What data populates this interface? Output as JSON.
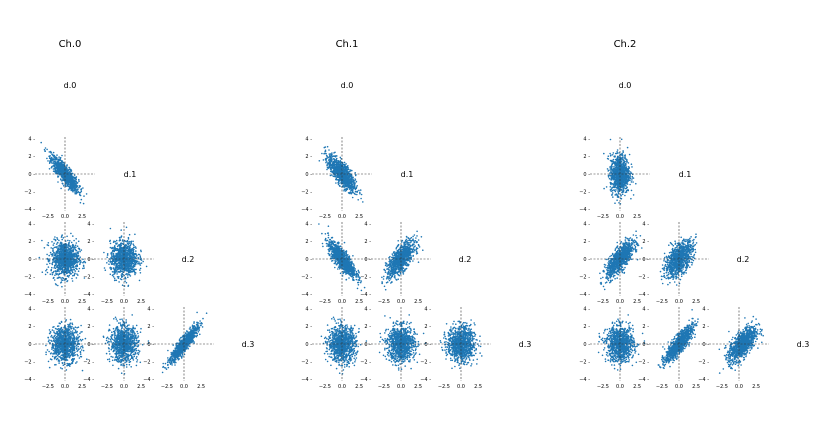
{
  "chart_data": {
    "type": "scatter",
    "color": "#1f77b4",
    "tick_values": [
      -2.5,
      0.0,
      2.5
    ],
    "tick_labels": [
      "−2.5",
      "0.0",
      "2.5"
    ],
    "ytick_values": [
      -4,
      -2,
      0,
      2,
      4
    ],
    "ytick_labels": [
      "−4",
      "−2",
      "0",
      "2",
      "4"
    ],
    "xlim": [
      -3.8,
      3.8
    ],
    "ylim": [
      -4.2,
      4.2
    ],
    "variables": [
      "d.0",
      "d.1",
      "d.2",
      "d.3"
    ],
    "channels": [
      {
        "title": "Ch.0",
        "pairs": [
          {
            "row": "d.1",
            "col": "d.0",
            "corr": -0.85,
            "sx": 1.0,
            "sy": 1.0,
            "mx": 0,
            "my": 0
          },
          {
            "row": "d.2",
            "col": "d.0",
            "corr": 0.0,
            "sx": 1.0,
            "sy": 1.0,
            "mx": 0,
            "my": 0
          },
          {
            "row": "d.2",
            "col": "d.1",
            "corr": 0.05,
            "sx": 1.0,
            "sy": 1.0,
            "mx": 0,
            "my": 0
          },
          {
            "row": "d.3",
            "col": "d.0",
            "corr": 0.0,
            "sx": 1.0,
            "sy": 1.0,
            "mx": 0,
            "my": 0
          },
          {
            "row": "d.3",
            "col": "d.1",
            "corr": 0.0,
            "sx": 1.0,
            "sy": 1.0,
            "mx": 0,
            "my": 0
          },
          {
            "row": "d.3",
            "col": "d.2",
            "corr": 0.9,
            "sx": 1.0,
            "sy": 1.0,
            "mx": 0,
            "my": 0
          }
        ]
      },
      {
        "title": "Ch.1",
        "pairs": [
          {
            "row": "d.1",
            "col": "d.0",
            "corr": -0.75,
            "sx": 1.0,
            "sy": 1.0,
            "mx": 0,
            "my": 0
          },
          {
            "row": "d.2",
            "col": "d.0",
            "corr": -0.8,
            "sx": 1.0,
            "sy": 1.0,
            "mx": 0,
            "my": 0
          },
          {
            "row": "d.2",
            "col": "d.1",
            "corr": 0.7,
            "sx": 1.0,
            "sy": 1.0,
            "mx": 0,
            "my": 0
          },
          {
            "row": "d.3",
            "col": "d.0",
            "corr": 0.0,
            "sx": 1.0,
            "sy": 1.0,
            "mx": 0,
            "my": 0
          },
          {
            "row": "d.3",
            "col": "d.1",
            "corr": 0.0,
            "sx": 1.0,
            "sy": 1.0,
            "mx": 0,
            "my": 0
          },
          {
            "row": "d.3",
            "col": "d.2",
            "corr": 0.0,
            "sx": 1.0,
            "sy": 1.0,
            "mx": 0,
            "my": 0
          }
        ]
      },
      {
        "title": "Ch.2",
        "pairs": [
          {
            "row": "d.1",
            "col": "d.0",
            "corr": 0.0,
            "sx": 0.7,
            "sy": 1.1,
            "mx": 0,
            "my": 0
          },
          {
            "row": "d.2",
            "col": "d.0",
            "corr": 0.75,
            "sx": 1.0,
            "sy": 1.0,
            "mx": 0,
            "my": 0
          },
          {
            "row": "d.2",
            "col": "d.1",
            "corr": 0.55,
            "sx": 1.0,
            "sy": 1.0,
            "mx": 0,
            "my": 0
          },
          {
            "row": "d.3",
            "col": "d.0",
            "corr": 0.0,
            "sx": 1.0,
            "sy": 1.0,
            "mx": 0,
            "my": 0
          },
          {
            "row": "d.3",
            "col": "d.1",
            "corr": 0.85,
            "sx": 1.0,
            "sy": 1.0,
            "mx": 0,
            "my": 0
          },
          {
            "row": "d.3",
            "col": "d.2",
            "corr": 0.65,
            "sx": 1.0,
            "sy": 1.0,
            "mx": 0.5,
            "my": 0
          }
        ]
      }
    ],
    "points_per_panel": 1000
  }
}
